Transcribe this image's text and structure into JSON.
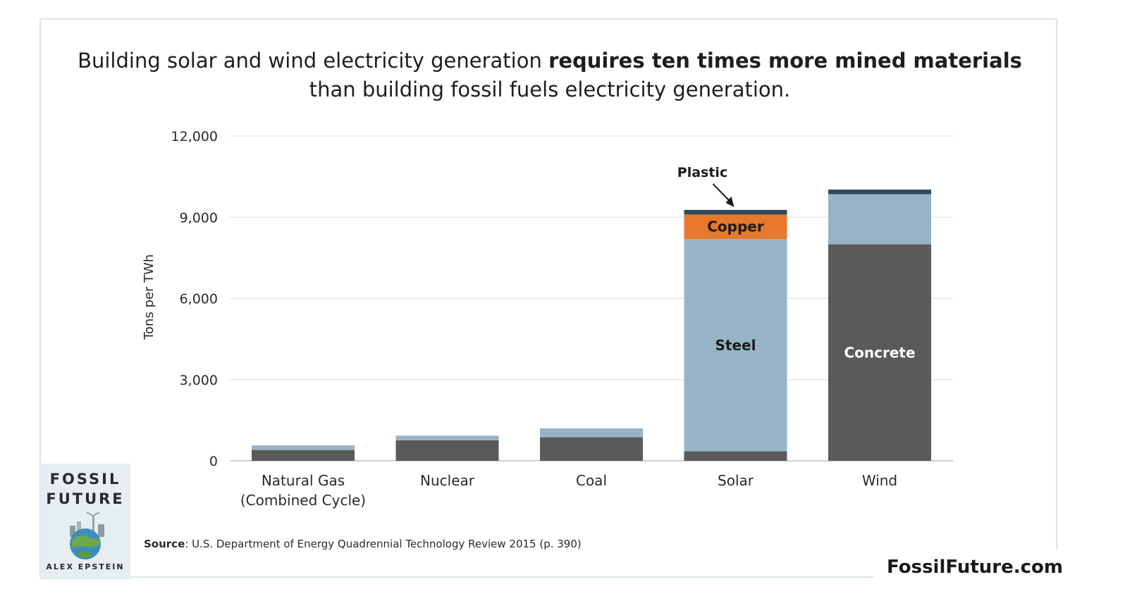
{
  "header": {
    "title_part1": "Building solar and wind electricity generation ",
    "title_bold": "requires ten times more mined materials",
    "title_part2": "than building fossil fuels electricity generation."
  },
  "chart_data": {
    "type": "bar",
    "stacked": true,
    "title": "Building solar and wind electricity generation requires ten times more mined materials than building fossil fuels electricity generation.",
    "xlabel": "",
    "ylabel": "Tons per TWh",
    "ylim": [
      0,
      12000
    ],
    "yticks": [
      0,
      3000,
      6000,
      9000,
      12000
    ],
    "ytick_labels": [
      "0",
      "3,000",
      "6,000",
      "9,000",
      "12,000"
    ],
    "grid": true,
    "categories": [
      [
        "Natural Gas",
        "(Combined Cycle)"
      ],
      [
        "Nuclear"
      ],
      [
        "Coal"
      ],
      [
        "Solar"
      ],
      [
        "Wind"
      ]
    ],
    "series": [
      {
        "name": "Concrete",
        "color": "#5a5a5a",
        "values": [
          400,
          760,
          870,
          350,
          8000
        ]
      },
      {
        "name": "Steel",
        "color": "#97b4c6",
        "values": [
          170,
          170,
          330,
          7850,
          1850
        ]
      },
      {
        "name": "Copper",
        "color": "#e8782a",
        "values": [
          0,
          0,
          0,
          900,
          0
        ]
      },
      {
        "name": "Plastic",
        "color": "#2c4a5c",
        "values": [
          0,
          0,
          0,
          170,
          170
        ]
      }
    ],
    "segment_labels": [
      {
        "text": "Steel",
        "category": 3,
        "series": 1,
        "color": "#1b1b1b"
      },
      {
        "text": "Copper",
        "category": 3,
        "series": 2,
        "color": "#1b1b1b"
      },
      {
        "text": "Concrete",
        "category": 4,
        "series": 0,
        "color": "#ffffff"
      }
    ],
    "annotations": [
      {
        "text": "Plastic",
        "category": 3,
        "series": 3
      }
    ]
  },
  "book": {
    "line1": "FOSSIL",
    "line2": "FUTURE",
    "author": "ALEX EPSTEIN"
  },
  "source": {
    "label": "Source",
    "text": ": U.S. Department of Energy Quadrennial Technology Review 2015 (p. 390)"
  },
  "site": "FossilFuture.com"
}
